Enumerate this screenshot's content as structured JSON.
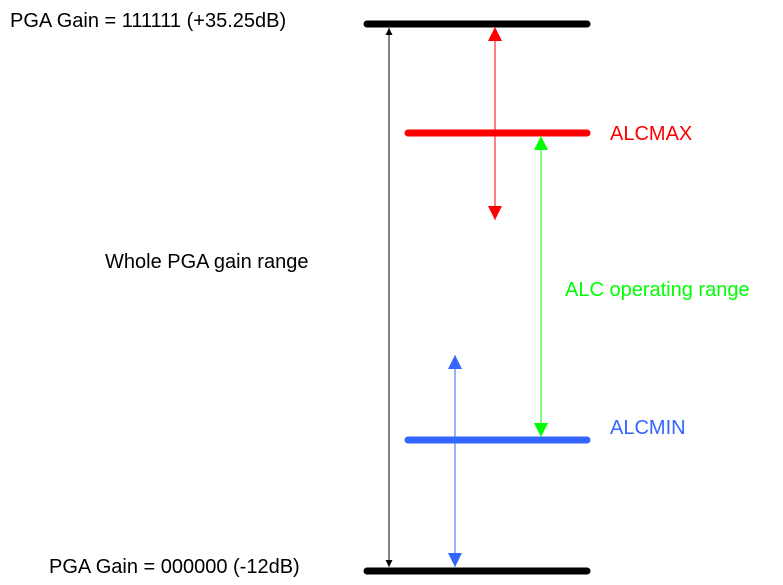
{
  "labels": {
    "top_gain": "PGA Gain = 111111 (+35.25dB)",
    "bottom_gain": "PGA Gain = 000000 (-12dB)",
    "whole_range": "Whole PGA gain range",
    "alcmax": "ALCMAX",
    "alcmin": "ALCMIN",
    "alc_range": "ALC operating range"
  },
  "colors": {
    "black": "#000000",
    "red": "#ff0000",
    "blue": "#3366ff",
    "green": "#00ff00"
  }
}
